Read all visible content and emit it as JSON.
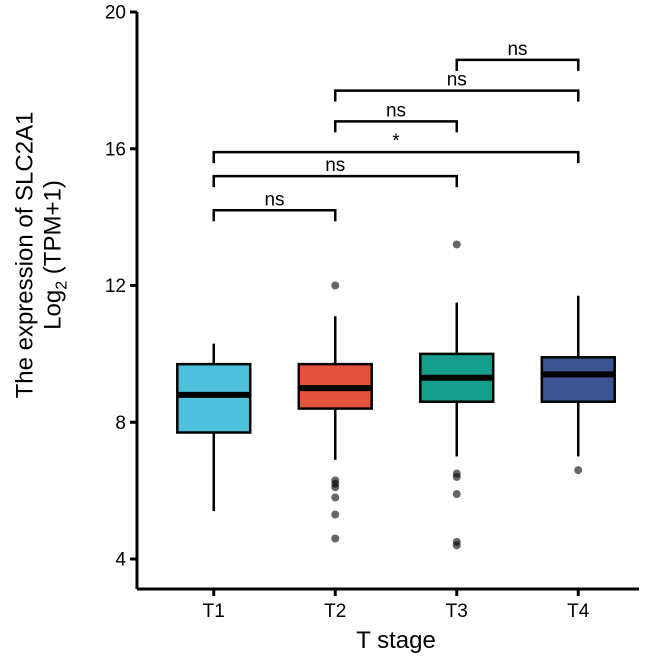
{
  "chart_data": {
    "type": "box",
    "xlabel": "T stage",
    "ylabel_line1": "The expression of SLC2A1",
    "ylabel_line2_prefix": "Log",
    "ylabel_line2_sub": "2",
    "ylabel_line2_suffix": " (TPM+1)",
    "ylim": [
      4,
      20
    ],
    "yticks": [
      4,
      8,
      12,
      16,
      20
    ],
    "categories": [
      "T1",
      "T2",
      "T3",
      "T4"
    ],
    "colors": [
      "#4FC0DC",
      "#E4533C",
      "#159E8A",
      "#3C5592"
    ],
    "boxes": [
      {
        "name": "T1",
        "q1": 7.7,
        "median": 8.8,
        "q3": 9.7,
        "whisker_low": 5.4,
        "whisker_high": 10.3,
        "outliers": []
      },
      {
        "name": "T2",
        "q1": 8.4,
        "median": 9.0,
        "q3": 9.7,
        "whisker_low": 6.9,
        "whisker_high": 11.1,
        "outliers": [
          12.0,
          6.3,
          6.2,
          6.1,
          5.8,
          5.3,
          4.6
        ]
      },
      {
        "name": "T3",
        "q1": 8.6,
        "median": 9.3,
        "q3": 10.0,
        "whisker_low": 7.0,
        "whisker_high": 11.5,
        "outliers": [
          13.2,
          6.5,
          6.4,
          5.9,
          4.5,
          4.4
        ]
      },
      {
        "name": "T4",
        "q1": 8.6,
        "median": 9.4,
        "q3": 9.9,
        "whisker_low": 7.0,
        "whisker_high": 11.7,
        "outliers": [
          6.6
        ]
      }
    ],
    "comparisons": [
      {
        "from": "T1",
        "to": "T2",
        "y": 14.2,
        "label": "ns"
      },
      {
        "from": "T1",
        "to": "T3",
        "y": 15.2,
        "label": "ns"
      },
      {
        "from": "T1",
        "to": "T4",
        "y": 15.9,
        "label": "*"
      },
      {
        "from": "T2",
        "to": "T3",
        "y": 16.8,
        "label": "ns"
      },
      {
        "from": "T2",
        "to": "T4",
        "y": 17.7,
        "label": "ns"
      },
      {
        "from": "T3",
        "to": "T4",
        "y": 18.6,
        "label": "ns"
      }
    ]
  }
}
